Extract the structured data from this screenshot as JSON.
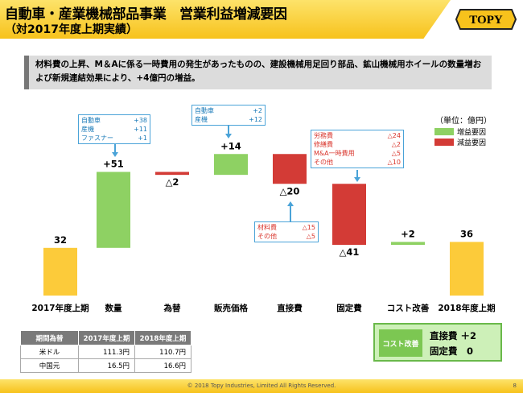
{
  "header": {
    "title": "自動車・産業機械部品事業　営業利益増減要因",
    "subtitle": "（対2017年度上期実績）",
    "logo_text": "TOPY"
  },
  "summary": "材料費の上昇、M＆Aに係る一時費用の発生があったものの、建設機械用足回り部品、鉱山機械用ホイールの数量増および新規連結効果により、+4億円の増益。",
  "chart_data": {
    "type": "waterfall",
    "unit": "（単位：億円）",
    "categories": [
      "2017年度上期",
      "数量",
      "為替",
      "販売価格",
      "直接費",
      "固定費",
      "コスト改善",
      "2018年度上期"
    ],
    "value_labels": [
      "32",
      "+51",
      "△2",
      "+14",
      "△20",
      "△41",
      "+2",
      "36"
    ],
    "values": [
      32,
      51,
      -2,
      14,
      -20,
      -41,
      2,
      36
    ],
    "kinds": [
      "total",
      "increase",
      "decrease",
      "increase",
      "decrease",
      "decrease",
      "increase",
      "total"
    ],
    "legend": [
      {
        "label": "増益要因",
        "color": "#8ed163"
      },
      {
        "label": "減益要因",
        "color": "#d33b36"
      }
    ],
    "colors": {
      "total": "#fccb3a",
      "increase": "#8ed163",
      "decrease": "#d33b36"
    }
  },
  "callouts": {
    "volume": {
      "rows": [
        {
          "name": "自動車",
          "value": "+38"
        },
        {
          "name": "産機",
          "value": "+11"
        },
        {
          "name": "ファスナー",
          "value": "+1"
        }
      ]
    },
    "price": {
      "rows": [
        {
          "name": "自動車",
          "value": "+2"
        },
        {
          "name": "産機",
          "value": "+12"
        }
      ]
    },
    "direct": {
      "rows": [
        {
          "name": "材料費",
          "value": "△15"
        },
        {
          "name": "その他",
          "value": "△5"
        }
      ]
    },
    "fixed": {
      "rows": [
        {
          "name": "労務費",
          "value": "△24"
        },
        {
          "name": "修繕費",
          "value": "△2"
        },
        {
          "name": "M&A一時費用",
          "value": "△5"
        },
        {
          "name": "その他",
          "value": "△10"
        }
      ]
    }
  },
  "fx_table": {
    "headers": [
      "期間為替",
      "2017年度上期",
      "2018年度上期"
    ],
    "rows": [
      [
        "米ドル",
        "111.3円",
        "110.7円"
      ],
      [
        "中国元",
        "16.5円",
        "16.6円"
      ]
    ]
  },
  "cost_box": {
    "tag": "コスト改善",
    "lines": [
      "直接費 ＋2",
      "固定費　0"
    ]
  },
  "footer": {
    "copyright": "© 2018 Topy Industries, Limited All Rights Reserved.",
    "page": "8"
  }
}
